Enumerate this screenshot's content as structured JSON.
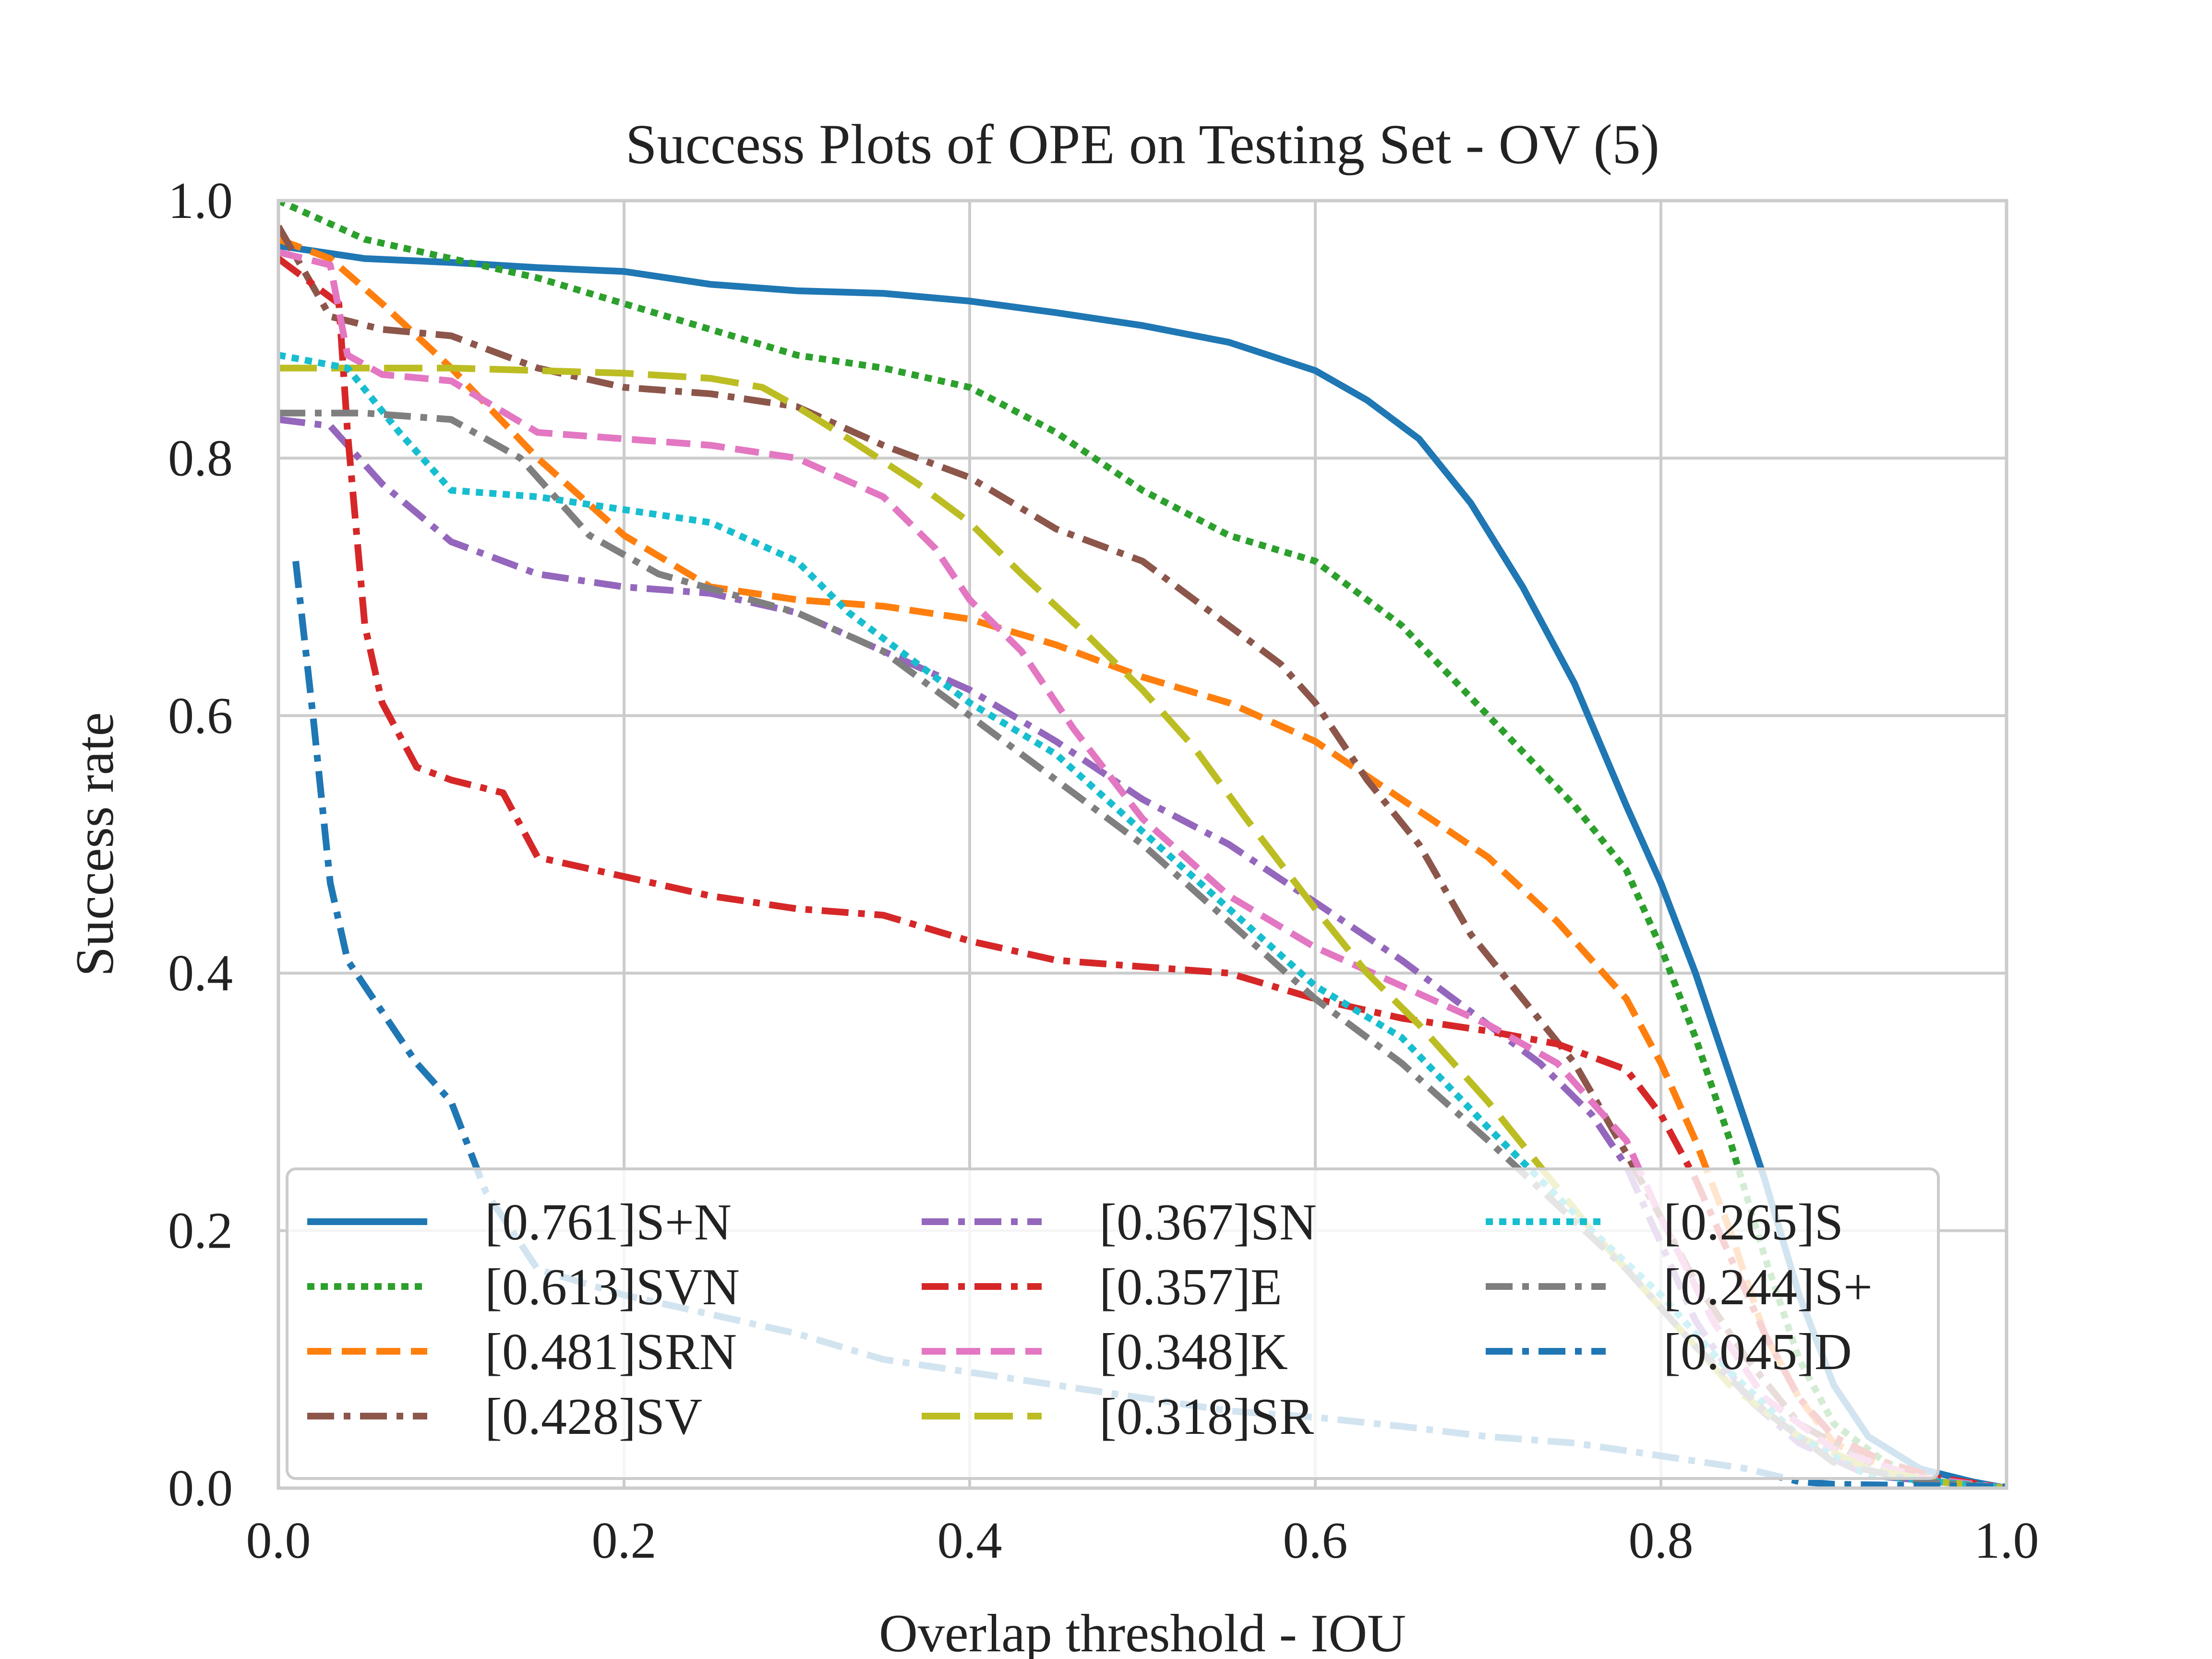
{
  "chart_data": {
    "type": "line",
    "title": "Success Plots of OPE on Testing Set - OV (5)",
    "xlabel": "Overlap threshold - IOU",
    "ylabel": "Success rate",
    "xlim": [
      0,
      1
    ],
    "ylim": [
      0,
      1
    ],
    "xticks": [
      "0.0",
      "0.2",
      "0.4",
      "0.6",
      "0.8",
      "1.0"
    ],
    "yticks": [
      "0.0",
      "0.2",
      "0.4",
      "0.6",
      "0.8",
      "1.0"
    ],
    "grid": true,
    "legend_position": "bottom, 3 columns",
    "series": [
      {
        "name": "[0.761]S+N",
        "color": "#1f77b4",
        "dash": "solid",
        "points": [
          [
            0.0,
            0.965
          ],
          [
            0.05,
            0.955
          ],
          [
            0.1,
            0.952
          ],
          [
            0.15,
            0.948
          ],
          [
            0.2,
            0.945
          ],
          [
            0.25,
            0.935
          ],
          [
            0.3,
            0.93
          ],
          [
            0.35,
            0.928
          ],
          [
            0.4,
            0.922
          ],
          [
            0.45,
            0.913
          ],
          [
            0.5,
            0.903
          ],
          [
            0.55,
            0.89
          ],
          [
            0.6,
            0.868
          ],
          [
            0.63,
            0.845
          ],
          [
            0.66,
            0.815
          ],
          [
            0.69,
            0.765
          ],
          [
            0.72,
            0.7
          ],
          [
            0.75,
            0.625
          ],
          [
            0.78,
            0.53
          ],
          [
            0.8,
            0.47
          ],
          [
            0.82,
            0.4
          ],
          [
            0.84,
            0.32
          ],
          [
            0.86,
            0.24
          ],
          [
            0.88,
            0.15
          ],
          [
            0.9,
            0.08
          ],
          [
            0.92,
            0.04
          ],
          [
            0.95,
            0.015
          ],
          [
            0.98,
            0.005
          ],
          [
            1.0,
            0.0
          ]
        ]
      },
      {
        "name": "[0.613]SVN",
        "color": "#2ca02c",
        "dash": "dotted",
        "points": [
          [
            0.0,
            1.0
          ],
          [
            0.05,
            0.97
          ],
          [
            0.1,
            0.955
          ],
          [
            0.15,
            0.94
          ],
          [
            0.2,
            0.92
          ],
          [
            0.25,
            0.9
          ],
          [
            0.3,
            0.88
          ],
          [
            0.35,
            0.87
          ],
          [
            0.4,
            0.855
          ],
          [
            0.45,
            0.82
          ],
          [
            0.5,
            0.775
          ],
          [
            0.55,
            0.74
          ],
          [
            0.6,
            0.72
          ],
          [
            0.65,
            0.67
          ],
          [
            0.7,
            0.6
          ],
          [
            0.75,
            0.53
          ],
          [
            0.78,
            0.48
          ],
          [
            0.8,
            0.42
          ],
          [
            0.82,
            0.35
          ],
          [
            0.84,
            0.27
          ],
          [
            0.86,
            0.18
          ],
          [
            0.88,
            0.1
          ],
          [
            0.9,
            0.05
          ],
          [
            0.93,
            0.02
          ],
          [
            0.96,
            0.005
          ],
          [
            1.0,
            0.0
          ]
        ]
      },
      {
        "name": "[0.481]SRN",
        "color": "#ff7f0e",
        "dash": "dashed",
        "points": [
          [
            0.0,
            0.97
          ],
          [
            0.03,
            0.955
          ],
          [
            0.06,
            0.92
          ],
          [
            0.1,
            0.87
          ],
          [
            0.15,
            0.8
          ],
          [
            0.2,
            0.74
          ],
          [
            0.25,
            0.7
          ],
          [
            0.3,
            0.69
          ],
          [
            0.35,
            0.685
          ],
          [
            0.4,
            0.675
          ],
          [
            0.45,
            0.655
          ],
          [
            0.5,
            0.63
          ],
          [
            0.55,
            0.61
          ],
          [
            0.6,
            0.58
          ],
          [
            0.65,
            0.535
          ],
          [
            0.7,
            0.49
          ],
          [
            0.74,
            0.44
          ],
          [
            0.78,
            0.38
          ],
          [
            0.8,
            0.33
          ],
          [
            0.82,
            0.27
          ],
          [
            0.84,
            0.2
          ],
          [
            0.86,
            0.12
          ],
          [
            0.88,
            0.07
          ],
          [
            0.9,
            0.035
          ],
          [
            0.94,
            0.01
          ],
          [
            1.0,
            0.0
          ]
        ]
      },
      {
        "name": "[0.428]SV",
        "color": "#8c564b",
        "dash": "dashdot",
        "points": [
          [
            0.0,
            0.98
          ],
          [
            0.03,
            0.91
          ],
          [
            0.06,
            0.9
          ],
          [
            0.1,
            0.895
          ],
          [
            0.15,
            0.87
          ],
          [
            0.2,
            0.855
          ],
          [
            0.25,
            0.85
          ],
          [
            0.3,
            0.84
          ],
          [
            0.35,
            0.81
          ],
          [
            0.4,
            0.785
          ],
          [
            0.45,
            0.745
          ],
          [
            0.5,
            0.72
          ],
          [
            0.55,
            0.67
          ],
          [
            0.58,
            0.64
          ],
          [
            0.6,
            0.61
          ],
          [
            0.63,
            0.55
          ],
          [
            0.66,
            0.5
          ],
          [
            0.69,
            0.43
          ],
          [
            0.72,
            0.38
          ],
          [
            0.75,
            0.33
          ],
          [
            0.78,
            0.26
          ],
          [
            0.8,
            0.21
          ],
          [
            0.82,
            0.16
          ],
          [
            0.85,
            0.1
          ],
          [
            0.88,
            0.05
          ],
          [
            0.92,
            0.02
          ],
          [
            0.96,
            0.005
          ],
          [
            1.0,
            0.0
          ]
        ]
      },
      {
        "name": "[0.367]SN",
        "color": "#9467bd",
        "dash": "dashdot",
        "points": [
          [
            0.0,
            0.83
          ],
          [
            0.03,
            0.825
          ],
          [
            0.06,
            0.78
          ],
          [
            0.1,
            0.735
          ],
          [
            0.15,
            0.71
          ],
          [
            0.2,
            0.7
          ],
          [
            0.25,
            0.695
          ],
          [
            0.3,
            0.68
          ],
          [
            0.35,
            0.65
          ],
          [
            0.4,
            0.62
          ],
          [
            0.45,
            0.58
          ],
          [
            0.5,
            0.535
          ],
          [
            0.55,
            0.5
          ],
          [
            0.6,
            0.455
          ],
          [
            0.65,
            0.41
          ],
          [
            0.7,
            0.36
          ],
          [
            0.73,
            0.33
          ],
          [
            0.76,
            0.29
          ],
          [
            0.78,
            0.25
          ],
          [
            0.8,
            0.19
          ],
          [
            0.82,
            0.13
          ],
          [
            0.85,
            0.07
          ],
          [
            0.88,
            0.035
          ],
          [
            0.92,
            0.01
          ],
          [
            1.0,
            0.0
          ]
        ]
      },
      {
        "name": "[0.357]E",
        "color": "#d62728",
        "dash": "dashdot",
        "points": [
          [
            0.0,
            0.955
          ],
          [
            0.035,
            0.92
          ],
          [
            0.04,
            0.82
          ],
          [
            0.05,
            0.67
          ],
          [
            0.06,
            0.61
          ],
          [
            0.08,
            0.56
          ],
          [
            0.1,
            0.55
          ],
          [
            0.13,
            0.54
          ],
          [
            0.15,
            0.49
          ],
          [
            0.2,
            0.475
          ],
          [
            0.25,
            0.46
          ],
          [
            0.3,
            0.45
          ],
          [
            0.35,
            0.445
          ],
          [
            0.4,
            0.425
          ],
          [
            0.45,
            0.41
          ],
          [
            0.5,
            0.405
          ],
          [
            0.55,
            0.4
          ],
          [
            0.6,
            0.38
          ],
          [
            0.65,
            0.365
          ],
          [
            0.7,
            0.355
          ],
          [
            0.74,
            0.345
          ],
          [
            0.78,
            0.325
          ],
          [
            0.8,
            0.29
          ],
          [
            0.82,
            0.24
          ],
          [
            0.84,
            0.18
          ],
          [
            0.86,
            0.12
          ],
          [
            0.88,
            0.07
          ],
          [
            0.9,
            0.04
          ],
          [
            0.93,
            0.02
          ],
          [
            0.96,
            0.008
          ],
          [
            1.0,
            0.0
          ]
        ]
      },
      {
        "name": "[0.348]K",
        "color": "#e377c2",
        "dash": "dashed",
        "points": [
          [
            0.0,
            0.96
          ],
          [
            0.03,
            0.95
          ],
          [
            0.04,
            0.88
          ],
          [
            0.06,
            0.865
          ],
          [
            0.1,
            0.86
          ],
          [
            0.15,
            0.82
          ],
          [
            0.2,
            0.815
          ],
          [
            0.25,
            0.81
          ],
          [
            0.3,
            0.8
          ],
          [
            0.35,
            0.77
          ],
          [
            0.38,
            0.73
          ],
          [
            0.4,
            0.69
          ],
          [
            0.43,
            0.65
          ],
          [
            0.46,
            0.59
          ],
          [
            0.5,
            0.52
          ],
          [
            0.55,
            0.46
          ],
          [
            0.6,
            0.42
          ],
          [
            0.65,
            0.39
          ],
          [
            0.7,
            0.36
          ],
          [
            0.74,
            0.33
          ],
          [
            0.78,
            0.27
          ],
          [
            0.8,
            0.21
          ],
          [
            0.83,
            0.13
          ],
          [
            0.86,
            0.07
          ],
          [
            0.9,
            0.03
          ],
          [
            0.95,
            0.008
          ],
          [
            1.0,
            0.0
          ]
        ]
      },
      {
        "name": "[0.318]SR",
        "color": "#bcbd22",
        "dash": "longdash",
        "points": [
          [
            0.0,
            0.87
          ],
          [
            0.05,
            0.87
          ],
          [
            0.1,
            0.87
          ],
          [
            0.15,
            0.868
          ],
          [
            0.2,
            0.866
          ],
          [
            0.25,
            0.862
          ],
          [
            0.28,
            0.855
          ],
          [
            0.3,
            0.84
          ],
          [
            0.33,
            0.815
          ],
          [
            0.37,
            0.78
          ],
          [
            0.4,
            0.75
          ],
          [
            0.43,
            0.71
          ],
          [
            0.47,
            0.66
          ],
          [
            0.5,
            0.62
          ],
          [
            0.53,
            0.575
          ],
          [
            0.56,
            0.52
          ],
          [
            0.6,
            0.45
          ],
          [
            0.63,
            0.4
          ],
          [
            0.66,
            0.36
          ],
          [
            0.7,
            0.3
          ],
          [
            0.73,
            0.25
          ],
          [
            0.76,
            0.2
          ],
          [
            0.8,
            0.14
          ],
          [
            0.84,
            0.08
          ],
          [
            0.88,
            0.04
          ],
          [
            0.92,
            0.015
          ],
          [
            0.96,
            0.005
          ],
          [
            1.0,
            0.0
          ]
        ]
      },
      {
        "name": "[0.265]S",
        "color": "#17becf",
        "dash": "dotted",
        "points": [
          [
            0.0,
            0.88
          ],
          [
            0.04,
            0.87
          ],
          [
            0.07,
            0.82
          ],
          [
            0.1,
            0.775
          ],
          [
            0.15,
            0.77
          ],
          [
            0.2,
            0.76
          ],
          [
            0.25,
            0.75
          ],
          [
            0.3,
            0.72
          ],
          [
            0.33,
            0.68
          ],
          [
            0.37,
            0.64
          ],
          [
            0.4,
            0.61
          ],
          [
            0.45,
            0.57
          ],
          [
            0.5,
            0.51
          ],
          [
            0.55,
            0.45
          ],
          [
            0.6,
            0.39
          ],
          [
            0.65,
            0.35
          ],
          [
            0.7,
            0.28
          ],
          [
            0.73,
            0.24
          ],
          [
            0.76,
            0.2
          ],
          [
            0.8,
            0.15
          ],
          [
            0.84,
            0.09
          ],
          [
            0.88,
            0.04
          ],
          [
            0.92,
            0.01
          ],
          [
            1.0,
            0.0
          ]
        ]
      },
      {
        "name": "[0.244]S+",
        "color": "#7f7f7f",
        "dash": "dashdot",
        "points": [
          [
            0.0,
            0.835
          ],
          [
            0.05,
            0.835
          ],
          [
            0.1,
            0.83
          ],
          [
            0.14,
            0.8
          ],
          [
            0.18,
            0.74
          ],
          [
            0.22,
            0.71
          ],
          [
            0.26,
            0.695
          ],
          [
            0.3,
            0.68
          ],
          [
            0.35,
            0.65
          ],
          [
            0.4,
            0.6
          ],
          [
            0.45,
            0.55
          ],
          [
            0.5,
            0.5
          ],
          [
            0.55,
            0.44
          ],
          [
            0.6,
            0.38
          ],
          [
            0.65,
            0.33
          ],
          [
            0.7,
            0.27
          ],
          [
            0.74,
            0.22
          ],
          [
            0.78,
            0.17
          ],
          [
            0.82,
            0.11
          ],
          [
            0.86,
            0.06
          ],
          [
            0.9,
            0.02
          ],
          [
            0.95,
            0.005
          ],
          [
            1.0,
            0.0
          ]
        ]
      },
      {
        "name": "[0.045]D",
        "color": "#1f77b4",
        "dash": "dashdot",
        "points": [
          [
            0.01,
            0.72
          ],
          [
            0.02,
            0.6
          ],
          [
            0.03,
            0.47
          ],
          [
            0.04,
            0.41
          ],
          [
            0.06,
            0.37
          ],
          [
            0.08,
            0.33
          ],
          [
            0.1,
            0.3
          ],
          [
            0.12,
            0.23
          ],
          [
            0.15,
            0.17
          ],
          [
            0.2,
            0.15
          ],
          [
            0.25,
            0.135
          ],
          [
            0.3,
            0.12
          ],
          [
            0.35,
            0.1
          ],
          [
            0.4,
            0.09
          ],
          [
            0.45,
            0.08
          ],
          [
            0.5,
            0.07
          ],
          [
            0.55,
            0.06
          ],
          [
            0.6,
            0.055
          ],
          [
            0.65,
            0.048
          ],
          [
            0.7,
            0.04
          ],
          [
            0.75,
            0.035
          ],
          [
            0.8,
            0.025
          ],
          [
            0.85,
            0.015
          ],
          [
            0.88,
            0.005
          ],
          [
            0.9,
            0.003
          ],
          [
            0.95,
            0.002
          ],
          [
            1.0,
            0.001
          ]
        ]
      }
    ]
  }
}
